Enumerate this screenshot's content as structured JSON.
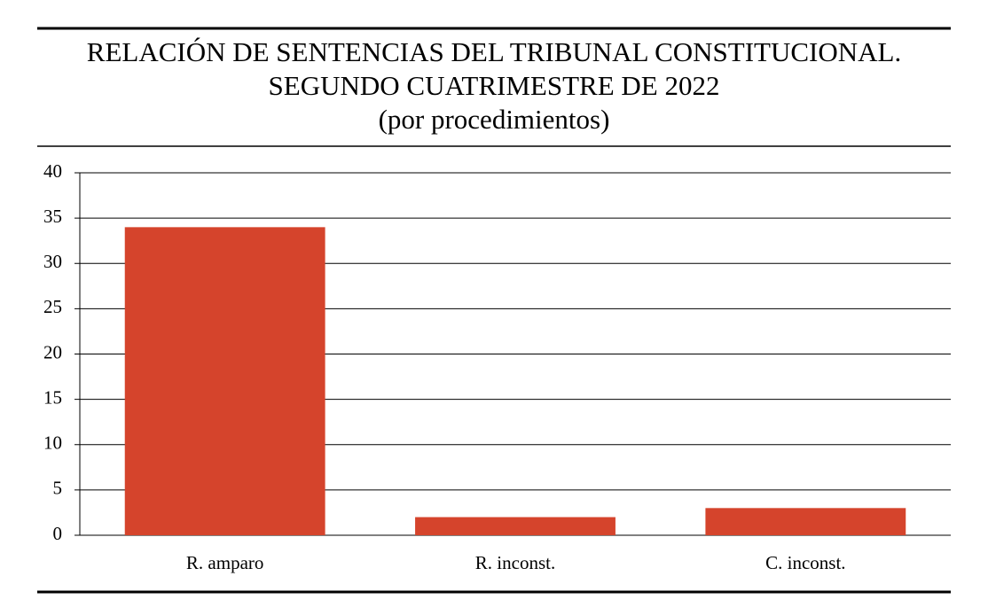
{
  "chart_data": {
    "type": "bar",
    "title": [
      "RELACIÓN DE SENTENCIAS DEL TRIBUNAL CONSTITUCIONAL.",
      "SEGUNDO CUATRIMESTRE DE 2022"
    ],
    "subtitle": "(por procedimientos)",
    "categories": [
      "R. amparo",
      "R. inconst.",
      "C. inconst."
    ],
    "values": [
      34,
      2,
      3
    ],
    "color": "#d5442c",
    "ylim": [
      0,
      40
    ],
    "yticks": [
      0,
      5,
      10,
      15,
      20,
      25,
      30,
      35,
      40
    ],
    "grid": true
  }
}
